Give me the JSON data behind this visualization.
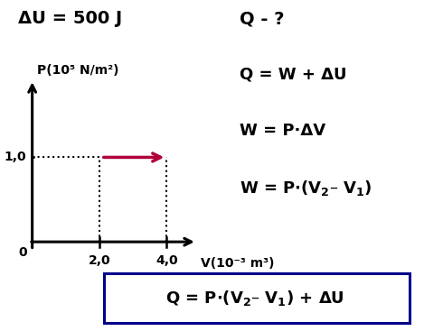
{
  "background_color": "#ffffff",
  "title_left": "ΔU = 500 J",
  "title_right": "Q - ?",
  "eq1": "Q = W + ΔU",
  "eq2": "W = P·ΔV",
  "ylabel": "P(10⁵ N/m²)",
  "xlabel": "V(10⁻³ m³)",
  "ytick_val": "1,0",
  "xtick_v1": "2,0",
  "xtick_v2": "4,0",
  "origin_label": "0",
  "arrow_color": "#b0003a",
  "dotted_color": "#000000",
  "text_color": "#000000",
  "axis_color": "#000000",
  "box_border_color": "#00008b",
  "font_size_title": 14,
  "font_size_eq": 13,
  "font_size_box": 13,
  "font_size_axis": 10,
  "font_size_tick": 10,
  "v1": 2.0,
  "v2": 4.0,
  "p": 1.0,
  "xlim": [
    -0.3,
    5.5
  ],
  "ylim": [
    -0.35,
    2.0
  ]
}
